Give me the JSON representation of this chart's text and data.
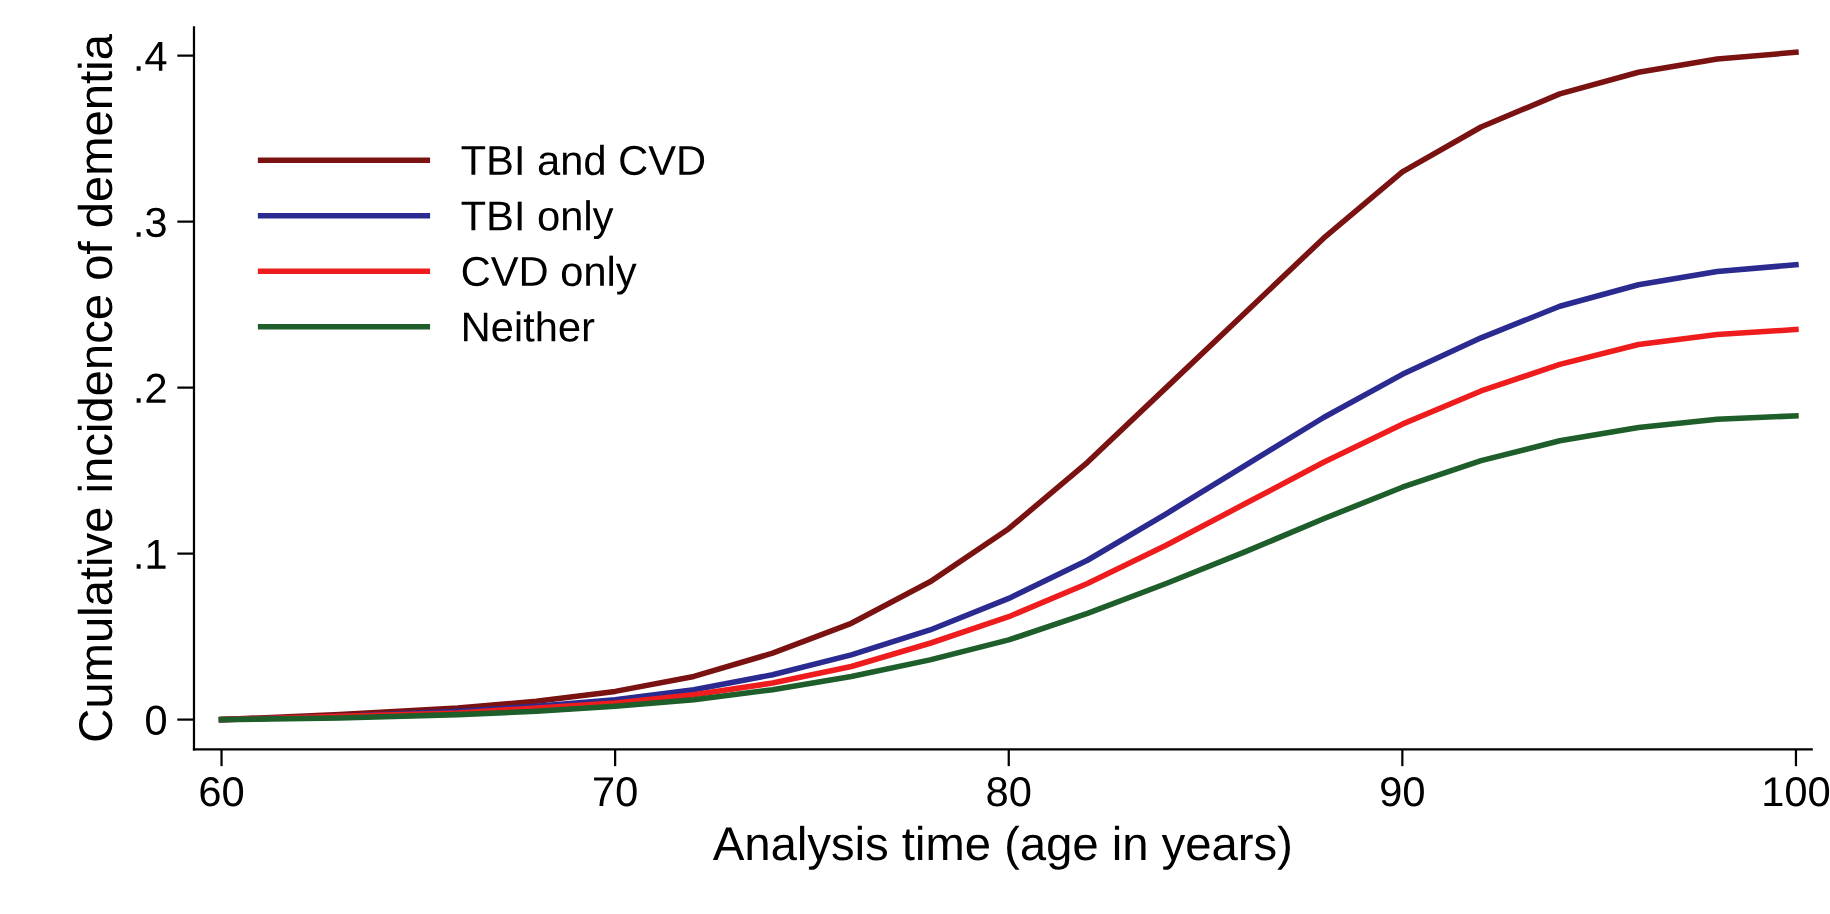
{
  "chart_data": {
    "type": "line",
    "xlabel": "Analysis time (age in years)",
    "ylabel": "Cumulative incidence of dementia",
    "x": [
      60,
      63,
      66,
      68,
      70,
      72,
      74,
      76,
      78,
      80,
      82,
      84,
      86,
      88,
      90,
      92,
      94,
      96,
      98,
      100
    ],
    "series": [
      {
        "name": "TBI and CVD",
        "color": "#7b1212",
        "values": [
          0,
          0.003,
          0.007,
          0.011,
          0.017,
          0.026,
          0.04,
          0.058,
          0.083,
          0.115,
          0.155,
          0.2,
          0.245,
          0.29,
          0.33,
          0.357,
          0.377,
          0.39,
          0.398,
          0.402
        ]
      },
      {
        "name": "TBI only",
        "color": "#2a2a90",
        "values": [
          0,
          0.002,
          0.005,
          0.008,
          0.012,
          0.018,
          0.027,
          0.039,
          0.054,
          0.073,
          0.096,
          0.124,
          0.153,
          0.182,
          0.208,
          0.23,
          0.249,
          0.262,
          0.27,
          0.274
        ]
      },
      {
        "name": "CVD only",
        "color": "#ee1c1c",
        "values": [
          0,
          0.002,
          0.004,
          0.007,
          0.01,
          0.015,
          0.022,
          0.032,
          0.046,
          0.062,
          0.082,
          0.105,
          0.13,
          0.155,
          0.178,
          0.198,
          0.214,
          0.226,
          0.232,
          0.235
        ]
      },
      {
        "name": "Neither",
        "color": "#1d5e2a",
        "values": [
          0,
          0.001,
          0.003,
          0.005,
          0.008,
          0.012,
          0.018,
          0.026,
          0.036,
          0.048,
          0.064,
          0.082,
          0.101,
          0.121,
          0.14,
          0.156,
          0.168,
          0.176,
          0.181,
          0.183
        ]
      }
    ],
    "xlim": [
      59.3,
      100.4
    ],
    "ylim": [
      -0.018,
      0.417
    ],
    "xticks": [
      60,
      70,
      80,
      90,
      100
    ],
    "yticks": [
      {
        "value": 0,
        "label": "0"
      },
      {
        "value": 0.1,
        "label": ".1"
      },
      {
        "value": 0.2,
        "label": ".2"
      },
      {
        "value": 0.3,
        "label": ".3"
      },
      {
        "value": 0.4,
        "label": ".4"
      }
    ],
    "grid": false,
    "legend": "top left",
    "line_style": "solid",
    "marker": "none"
  }
}
